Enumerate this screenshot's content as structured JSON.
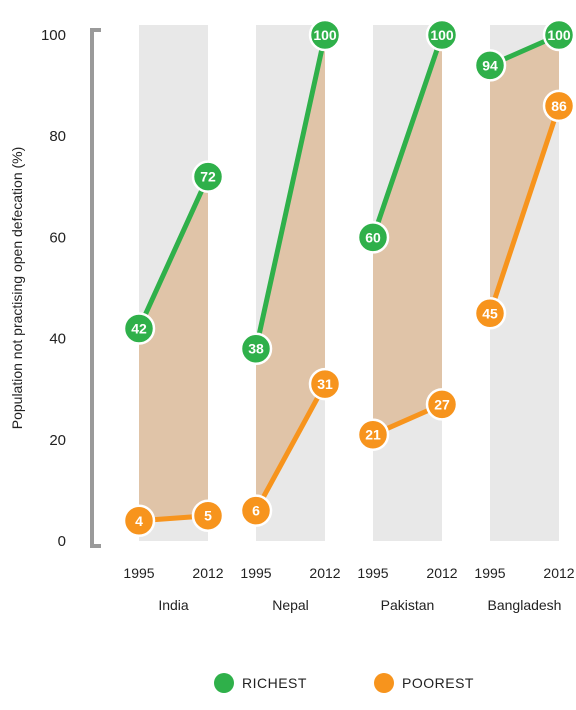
{
  "chart_data": {
    "type": "line",
    "ylabel": "Population not practising open defecation (%)",
    "ylim": [
      0,
      100
    ],
    "yticks": [
      0,
      20,
      40,
      60,
      80,
      100
    ],
    "years": [
      "1995",
      "2012"
    ],
    "groups": [
      {
        "country": "India",
        "richest": [
          42,
          72
        ],
        "poorest": [
          4,
          5
        ]
      },
      {
        "country": "Nepal",
        "richest": [
          38,
          100
        ],
        "poorest": [
          6,
          31
        ]
      },
      {
        "country": "Pakistan",
        "richest": [
          60,
          100
        ],
        "poorest": [
          21,
          27
        ]
      },
      {
        "country": "Bangladesh",
        "richest": [
          94,
          100
        ],
        "poorest": [
          45,
          86
        ]
      }
    ],
    "legend": [
      {
        "key": "richest",
        "label": "RICHEST",
        "color": "#2fb04a"
      },
      {
        "key": "poorest",
        "label": "POOREST",
        "color": "#f7941d"
      }
    ],
    "colors": {
      "richest": "#2fb04a",
      "poorest": "#f7941d",
      "band": "#e8e8e8",
      "fill": "#e0c4a8",
      "axis": "#9a9a9a"
    }
  }
}
